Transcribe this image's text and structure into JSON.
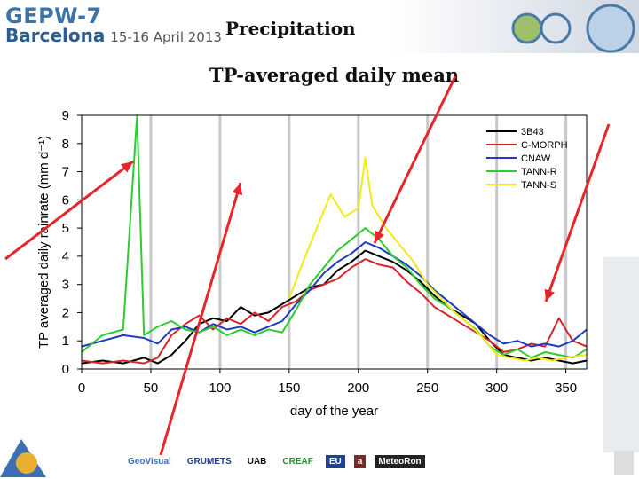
{
  "header": {
    "conference": "GEPW-7",
    "city": "Barcelona",
    "dates": "15-16 April 2013"
  },
  "slide": {
    "title": "Precipitation",
    "subtitle": "TP-averaged daily mean"
  },
  "footer": {
    "logos": [
      "GeoVisual",
      "GRUMETS",
      "UAB",
      "CREAF",
      "EU",
      "a",
      "MeteoRon"
    ]
  },
  "colors": {
    "arrow": "#e5262a",
    "header_blue": "#3f73a6"
  },
  "chart_data": {
    "type": "line",
    "xlabel": "day of the year",
    "ylabel": "TP averaged daily rainrate (mm d⁻¹)",
    "xlim": [
      0,
      365
    ],
    "ylim": [
      0,
      9
    ],
    "xticks": [
      0,
      50,
      100,
      150,
      200,
      250,
      300,
      350
    ],
    "yticks": [
      0,
      1,
      2,
      3,
      4,
      5,
      6,
      7,
      8,
      9
    ],
    "grid": "vertical",
    "legend_position": "top-right",
    "series": [
      {
        "name": "3B43",
        "color": "#000000",
        "x": [
          0,
          15,
          30,
          45,
          55,
          65,
          75,
          85,
          95,
          105,
          115,
          125,
          135,
          145,
          155,
          165,
          175,
          185,
          195,
          205,
          215,
          225,
          235,
          245,
          255,
          265,
          275,
          285,
          295,
          305,
          315,
          325,
          335,
          345,
          355,
          365
        ],
        "y": [
          0.2,
          0.3,
          0.2,
          0.4,
          0.2,
          0.5,
          1.0,
          1.6,
          1.8,
          1.7,
          2.2,
          1.9,
          2.0,
          2.3,
          2.6,
          2.9,
          3.0,
          3.5,
          3.8,
          4.2,
          4.0,
          3.8,
          3.5,
          3.1,
          2.6,
          2.2,
          1.9,
          1.6,
          1.0,
          0.5,
          0.4,
          0.3,
          0.4,
          0.3,
          0.2,
          0.3
        ]
      },
      {
        "name": "C-MORPH",
        "color": "#d62728",
        "x": [
          0,
          15,
          30,
          45,
          55,
          65,
          75,
          85,
          95,
          105,
          115,
          125,
          135,
          145,
          155,
          165,
          175,
          185,
          195,
          205,
          215,
          225,
          235,
          245,
          255,
          265,
          275,
          285,
          295,
          305,
          315,
          325,
          335,
          345,
          355,
          365
        ],
        "y": [
          0.3,
          0.2,
          0.3,
          0.2,
          0.4,
          1.2,
          1.6,
          1.9,
          1.4,
          1.8,
          1.6,
          2.0,
          1.7,
          2.2,
          2.4,
          2.8,
          3.0,
          3.2,
          3.6,
          3.9,
          3.7,
          3.6,
          3.1,
          2.7,
          2.2,
          1.9,
          1.6,
          1.3,
          1.0,
          0.6,
          0.7,
          0.9,
          0.8,
          1.8,
          1.0,
          0.8
        ]
      },
      {
        "name": "CNAW",
        "color": "#1f3bbf",
        "x": [
          0,
          15,
          30,
          45,
          55,
          65,
          75,
          85,
          95,
          105,
          115,
          125,
          135,
          145,
          155,
          165,
          175,
          185,
          195,
          205,
          215,
          225,
          235,
          245,
          255,
          265,
          275,
          285,
          295,
          305,
          315,
          325,
          335,
          345,
          355,
          365
        ],
        "y": [
          0.8,
          1.0,
          1.2,
          1.1,
          0.9,
          1.4,
          1.5,
          1.3,
          1.6,
          1.4,
          1.5,
          1.3,
          1.5,
          1.7,
          2.3,
          2.8,
          3.4,
          3.8,
          4.1,
          4.5,
          4.3,
          4.0,
          3.7,
          3.3,
          2.8,
          2.4,
          2.0,
          1.6,
          1.2,
          0.9,
          1.0,
          0.8,
          0.9,
          0.8,
          1.0,
          1.4
        ]
      },
      {
        "name": "TANN-R",
        "color": "#2ecc2e",
        "x": [
          0,
          15,
          30,
          40,
          45,
          55,
          65,
          75,
          85,
          95,
          105,
          115,
          125,
          135,
          145,
          155,
          165,
          175,
          185,
          195,
          205,
          215,
          225,
          235,
          245,
          255,
          265,
          275,
          285,
          295,
          305,
          315,
          325,
          335,
          345,
          355,
          365
        ],
        "y": [
          0.6,
          1.2,
          1.4,
          9.0,
          1.2,
          1.5,
          1.7,
          1.4,
          1.3,
          1.5,
          1.2,
          1.4,
          1.2,
          1.4,
          1.3,
          2.1,
          3.0,
          3.6,
          4.2,
          4.6,
          5.0,
          4.6,
          4.0,
          3.6,
          3.0,
          2.5,
          2.2,
          1.8,
          1.4,
          0.8,
          0.5,
          0.7,
          0.4,
          0.6,
          0.5,
          0.4,
          0.7
        ]
      },
      {
        "name": "TANN-S",
        "color": "#f2ea1a",
        "x": [
          150,
          160,
          170,
          180,
          190,
          200,
          205,
          210,
          220,
          230,
          240,
          250,
          260,
          270,
          280,
          290,
          300,
          310,
          320,
          330,
          340,
          350,
          365
        ],
        "y": [
          2.5,
          3.8,
          5.0,
          6.2,
          5.4,
          5.7,
          7.5,
          5.8,
          5.0,
          4.4,
          3.8,
          3.0,
          2.5,
          2.0,
          1.6,
          1.1,
          0.5,
          0.4,
          0.3,
          0.4,
          0.3,
          0.4,
          0.5
        ]
      }
    ]
  }
}
